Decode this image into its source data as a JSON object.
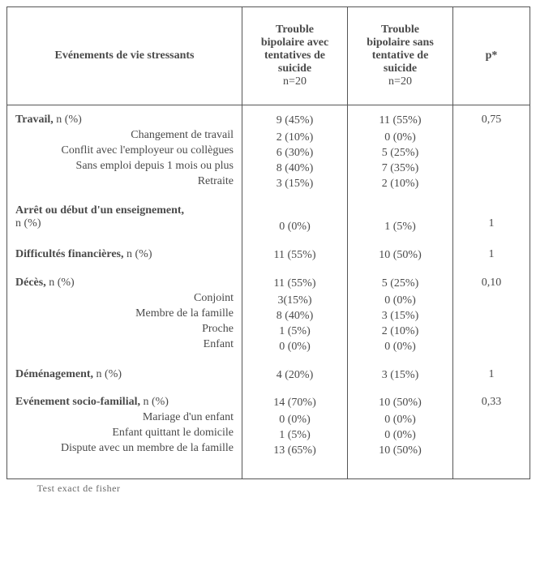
{
  "colors": {
    "text": "#4a4a4a",
    "border": "#555555",
    "background": "#ffffff"
  },
  "typography": {
    "font_family": "Times New Roman",
    "base_fontsize_pt": 11,
    "header_bold": true
  },
  "header": {
    "col1": "Evénements de vie stressants",
    "col2_lines": [
      "Trouble",
      "bipolaire avec",
      "tentatives de",
      "suicide"
    ],
    "col2_sub": "n=20",
    "col3_lines": [
      "Trouble",
      "bipolaire sans",
      "tentative de",
      "suicide"
    ],
    "col3_sub": "n=20",
    "col4": "p*"
  },
  "rows": [
    {
      "label_main": "Travail,",
      "label_suffix": " n (%)",
      "subs": [
        "Changement de travail",
        "Conflit avec l'employeur ou collègues",
        "Sans emploi depuis 1 mois ou plus",
        "Retraite"
      ],
      "c2_top": "9 (45%)",
      "c2_sub": [
        "2 (10%)",
        "6 (30%)",
        "8 (40%)",
        "3 (15%)"
      ],
      "c3_top": "11 (55%)",
      "c3_sub": [
        "0 (0%)",
        "5 (25%)",
        "7 (35%)",
        "2 (10%)"
      ],
      "p": "0,75"
    },
    {
      "label_main": "Arrêt ou début d'un enseignement,",
      "label_suffix": "",
      "label_second_line": "n (%)",
      "subs": [],
      "c2_top": "0 (0%)",
      "c2_sub": [],
      "c3_top": "1 (5%)",
      "c3_sub": [],
      "p": "1",
      "val_offset": true
    },
    {
      "label_main": "Difficultés financières,",
      "label_suffix": " n (%)",
      "subs": [],
      "c2_top": "11 (55%)",
      "c2_sub": [],
      "c3_top": "10 (50%)",
      "c3_sub": [],
      "p": "1"
    },
    {
      "label_main": "Décès,",
      "label_suffix": " n (%)",
      "subs": [
        "Conjoint",
        "Membre de la famille",
        "Proche",
        "Enfant"
      ],
      "c2_top": "11 (55%)",
      "c2_sub": [
        "3(15%)",
        "8 (40%)",
        "1 (5%)",
        "0 (0%)"
      ],
      "c3_top": "5 (25%)",
      "c3_sub": [
        "0 (0%)",
        "3 (15%)",
        "2 (10%)",
        "0 (0%)"
      ],
      "p": "0,10"
    },
    {
      "label_main": "Déménagement,",
      "label_suffix": " n (%)",
      "subs": [],
      "c2_top": "4 (20%)",
      "c2_sub": [],
      "c3_top": "3 (15%)",
      "c3_sub": [],
      "p": "1"
    },
    {
      "label_main": "Evénement socio-familial,",
      "label_suffix": " n (%)",
      "subs": [
        "Mariage d'un enfant",
        "Enfant quittant le domicile",
        "Dispute avec un membre de la famille"
      ],
      "c2_top": "14 (70%)",
      "c2_sub": [
        "0 (0%)",
        "1 (5%)",
        "13 (65%)"
      ],
      "c3_top": "10 (50%)",
      "c3_sub": [
        "0 (0%)",
        "0 (0%)",
        "10 (50%)"
      ],
      "p": "0,33"
    }
  ],
  "footnote_fragment": "Test exact de fisher"
}
